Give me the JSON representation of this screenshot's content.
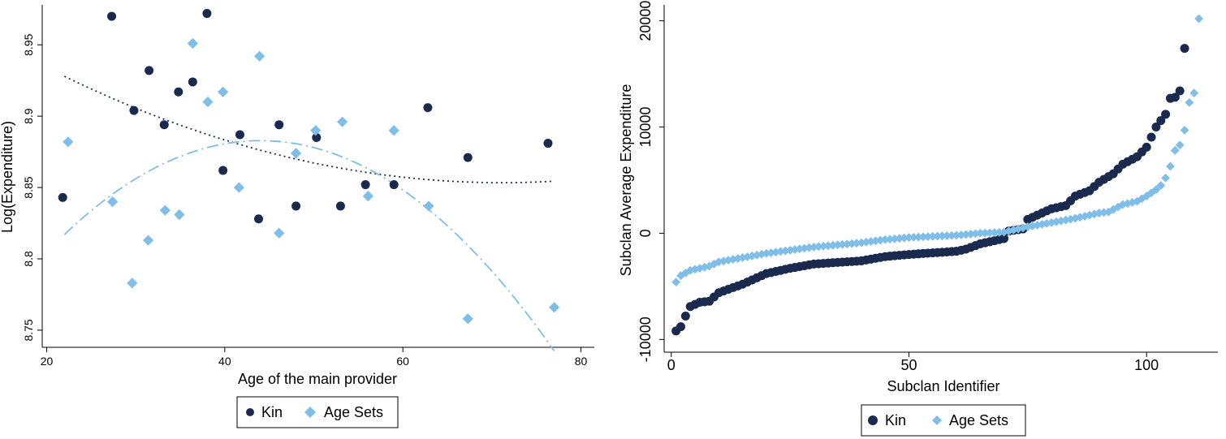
{
  "chart_data": [
    {
      "type": "scatter",
      "xlabel": "Age of the main provider",
      "ylabel": "Log(Expenditure)",
      "xlim": [
        19.5,
        81.5
      ],
      "ylim": [
        8.738,
        8.978
      ],
      "xticks": [
        20,
        40,
        60,
        80
      ],
      "yticks": [
        8.75,
        8.8,
        8.85,
        8.9,
        8.95
      ],
      "grid": false,
      "legend_position": "bottom-center",
      "series": [
        {
          "name": "Kin",
          "color": "#1a2a4f",
          "marker": "circle",
          "points": [
            [
              21.8,
              8.843
            ],
            [
              27.3,
              8.97
            ],
            [
              29.8,
              8.904
            ],
            [
              31.5,
              8.932
            ],
            [
              33.2,
              8.894
            ],
            [
              34.8,
              8.917
            ],
            [
              36.4,
              8.924
            ],
            [
              38.0,
              8.972
            ],
            [
              39.8,
              8.862
            ],
            [
              41.7,
              8.887
            ],
            [
              43.8,
              8.828
            ],
            [
              46.1,
              8.894
            ],
            [
              48.0,
              8.837
            ],
            [
              50.3,
              8.885
            ],
            [
              53.0,
              8.837
            ],
            [
              55.8,
              8.852
            ],
            [
              59.0,
              8.852
            ],
            [
              62.8,
              8.906
            ],
            [
              67.3,
              8.871
            ],
            [
              76.3,
              8.881
            ]
          ]
        },
        {
          "name": "Age Sets",
          "color": "#7fbee8",
          "marker": "diamond",
          "points": [
            [
              22.4,
              8.882
            ],
            [
              27.4,
              8.84
            ],
            [
              29.6,
              8.783
            ],
            [
              31.4,
              8.813
            ],
            [
              33.3,
              8.834
            ],
            [
              34.9,
              8.831
            ],
            [
              36.4,
              8.951
            ],
            [
              38.1,
              8.91
            ],
            [
              39.8,
              8.917
            ],
            [
              41.6,
              8.85
            ],
            [
              43.9,
              8.942
            ],
            [
              46.1,
              8.818
            ],
            [
              48.0,
              8.874
            ],
            [
              50.2,
              8.89
            ],
            [
              53.2,
              8.896
            ],
            [
              56.1,
              8.844
            ],
            [
              59.0,
              8.89
            ],
            [
              62.9,
              8.837
            ],
            [
              67.3,
              8.758
            ],
            [
              77.0,
              8.766
            ]
          ]
        }
      ],
      "fitted": [
        {
          "series": "Kin",
          "style": "dotted",
          "color": "#1a2a4f",
          "x_range": [
            22,
            77
          ],
          "coefficients": [
            9.0095,
            -0.004387,
            3.082e-05
          ]
        },
        {
          "series": "Age Sets",
          "style": "dash-dot",
          "color": "#7fbee8",
          "x_range": [
            22,
            77
          ],
          "coefficients": [
            8.62,
            0.01194,
            -0.0001356
          ]
        }
      ]
    },
    {
      "type": "scatter",
      "xlabel": "Subclan Identifier",
      "ylabel": "Subclan Average Expenditure",
      "xlim": [
        -1.5,
        115.0
      ],
      "ylim": [
        -11200,
        21500
      ],
      "xticks": [
        0,
        50,
        100
      ],
      "yticks": [
        -10000,
        0,
        10000,
        20000
      ],
      "grid": false,
      "legend_position": "bottom-center",
      "series": [
        {
          "name": "Kin",
          "color": "#1a2a4f",
          "marker": "circle",
          "anchors": [
            [
              1,
              -9200
            ],
            [
              2,
              -8800
            ],
            [
              3,
              -7800
            ],
            [
              4,
              -6900
            ],
            [
              6,
              -6500
            ],
            [
              8,
              -6400
            ],
            [
              9,
              -6000
            ],
            [
              10,
              -5600
            ],
            [
              15,
              -4800
            ],
            [
              20,
              -3800
            ],
            [
              25,
              -3300
            ],
            [
              30,
              -2900
            ],
            [
              40,
              -2600
            ],
            [
              45,
              -2200
            ],
            [
              50,
              -2000
            ],
            [
              60,
              -1700
            ],
            [
              62,
              -1500
            ],
            [
              65,
              -1000
            ],
            [
              67,
              -800
            ],
            [
              70,
              -500
            ],
            [
              71,
              200
            ],
            [
              74,
              400
            ],
            [
              75,
              1300
            ],
            [
              80,
              2300
            ],
            [
              83,
              2600
            ],
            [
              85,
              3500
            ],
            [
              88,
              4000
            ],
            [
              90,
              4800
            ],
            [
              93,
              5600
            ],
            [
              95,
              6500
            ],
            [
              98,
              7200
            ],
            [
              100,
              8100
            ],
            [
              102,
              10000
            ],
            [
              104,
              11200
            ],
            [
              105,
              12700
            ],
            [
              106,
              12800
            ],
            [
              107,
              13400
            ],
            [
              108,
              17400
            ]
          ]
        },
        {
          "name": "Age Sets",
          "color": "#7fbee8",
          "marker": "diamond",
          "anchors": [
            [
              1,
              -4600
            ],
            [
              2,
              -4000
            ],
            [
              4,
              -3500
            ],
            [
              6,
              -3300
            ],
            [
              8,
              -3100
            ],
            [
              10,
              -2700
            ],
            [
              15,
              -2300
            ],
            [
              20,
              -1900
            ],
            [
              25,
              -1600
            ],
            [
              30,
              -1300
            ],
            [
              40,
              -900
            ],
            [
              45,
              -600
            ],
            [
              50,
              -400
            ],
            [
              60,
              -200
            ],
            [
              65,
              0
            ],
            [
              70,
              100
            ],
            [
              75,
              600
            ],
            [
              80,
              1000
            ],
            [
              85,
              1400
            ],
            [
              90,
              1900
            ],
            [
              92,
              2000
            ],
            [
              95,
              2700
            ],
            [
              98,
              3000
            ],
            [
              100,
              3500
            ],
            [
              102,
              4100
            ],
            [
              103,
              4500
            ],
            [
              104,
              5200
            ],
            [
              105,
              6300
            ],
            [
              106,
              7800
            ],
            [
              107,
              8300
            ],
            [
              108,
              9700
            ],
            [
              109,
              12300
            ],
            [
              110,
              13200
            ],
            [
              111,
              20200
            ]
          ]
        }
      ]
    }
  ],
  "legend": {
    "items": [
      {
        "label": "Kin",
        "color": "#1a2a4f",
        "marker": "circle"
      },
      {
        "label": "Age Sets",
        "color": "#7fbee8",
        "marker": "diamond"
      }
    ]
  }
}
